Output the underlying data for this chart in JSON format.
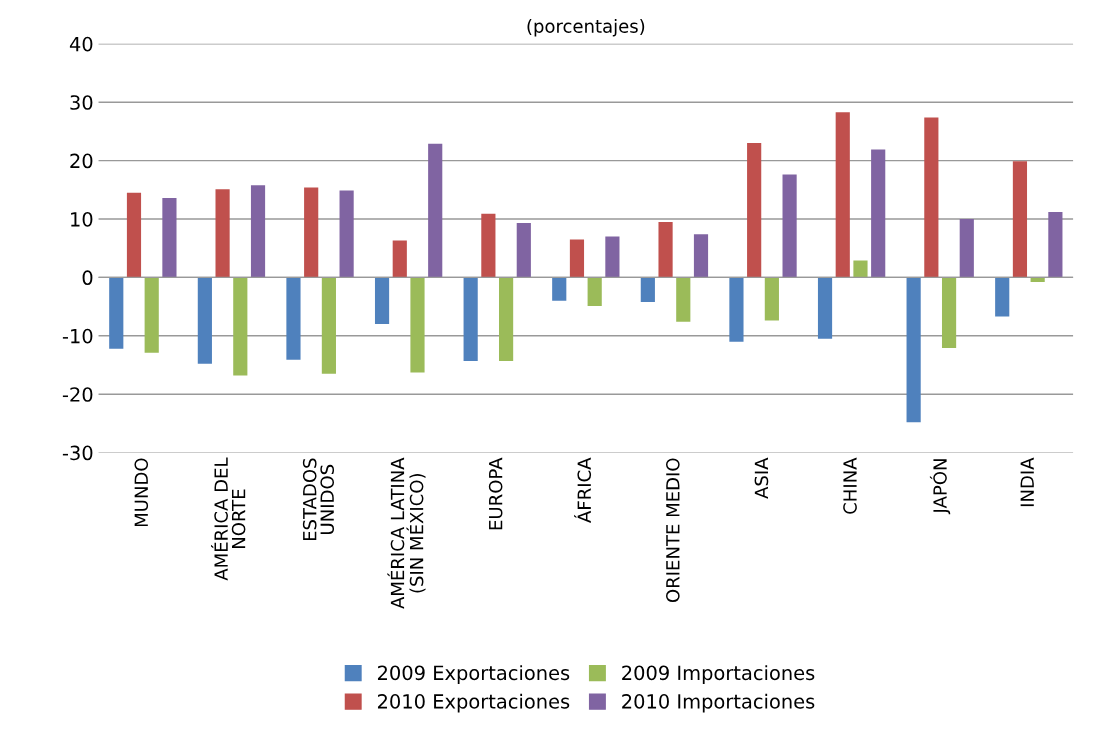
{
  "chart_data": {
    "type": "bar",
    "title": "(porcentajes)",
    "categories": [
      "MUNDO",
      "AMÉRICA DEL\nNORTE",
      "ESTADOS\nUNIDOS",
      "AMÉRICA LATINA\n(SIN MÉXICO)",
      "EUROPA",
      "ÁFRICA",
      "ORIENTE MEDIO",
      "ASIA",
      "CHINA",
      "JAPÓN",
      "INDIA"
    ],
    "series": [
      {
        "name": "2009 Exportaciones",
        "color": "#4f81bd",
        "values": [
          -12.2,
          -14.8,
          -14.1,
          -8.0,
          -14.3,
          -4.0,
          -4.2,
          -11.0,
          -10.5,
          -24.8,
          -6.7
        ]
      },
      {
        "name": "2010 Exportaciones",
        "color": "#c0504d",
        "values": [
          14.5,
          15.1,
          15.4,
          6.3,
          10.9,
          6.5,
          9.5,
          23.0,
          28.3,
          27.4,
          19.9
        ]
      },
      {
        "name": "2009 Importaciones",
        "color": "#9bbb59",
        "values": [
          -12.9,
          -16.8,
          -16.5,
          -16.3,
          -14.3,
          -4.9,
          -7.6,
          -7.4,
          2.9,
          -12.1,
          -0.8
        ]
      },
      {
        "name": "2010 Importaciones",
        "color": "#8064a2",
        "values": [
          13.6,
          15.8,
          14.9,
          22.9,
          9.3,
          7.0,
          7.4,
          17.6,
          21.9,
          10.0,
          11.2
        ]
      }
    ],
    "ylim": [
      -30,
      40
    ],
    "yticks": [
      -30,
      -20,
      -10,
      0,
      10,
      20,
      30,
      40
    ],
    "grid": "y",
    "legend": "bottom"
  }
}
